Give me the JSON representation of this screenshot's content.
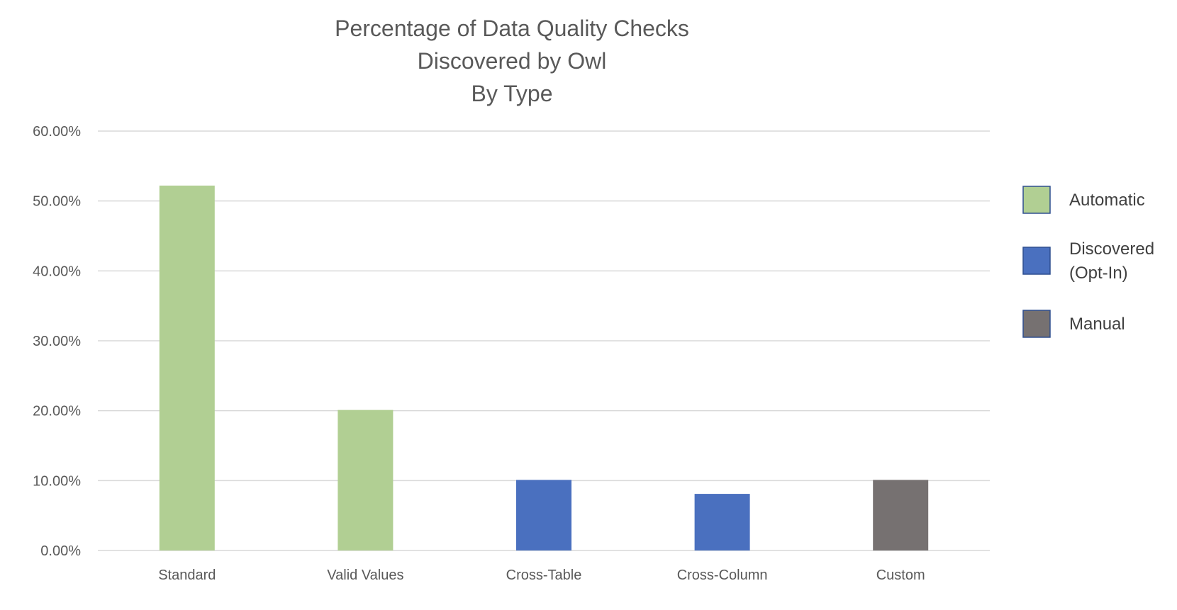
{
  "chart_data": {
    "type": "bar",
    "title": "Percentage of Data Quality Checks Discovered by Owl By Type",
    "title_lines": [
      "Percentage of Data Quality Checks",
      "Discovered by Owl",
      "By Type"
    ],
    "categories": [
      "Standard",
      "Valid Values",
      "Cross-Table",
      "Cross-Column",
      "Custom"
    ],
    "values": [
      52.2,
      20.1,
      10.1,
      8.1,
      10.1
    ],
    "bar_series": [
      "Automatic",
      "Automatic",
      "Discovered (Opt-In)",
      "Discovered (Opt-In)",
      "Manual"
    ],
    "series": [
      {
        "name": "Automatic",
        "label_lines": [
          "Automatic"
        ],
        "color": "#b1cf93"
      },
      {
        "name": "Discovered (Opt-In)",
        "label_lines": [
          "Discovered",
          "(Opt-In)"
        ],
        "color": "#4a70bf"
      },
      {
        "name": "Manual",
        "label_lines": [
          "Manual"
        ],
        "color": "#767171"
      }
    ],
    "y_ticks": [
      "0.00%",
      "10.00%",
      "20.00%",
      "30.00%",
      "40.00%",
      "50.00%",
      "60.00%"
    ],
    "ylim": [
      0,
      60
    ],
    "y_unit": "percent",
    "xlabel": "",
    "ylabel": "",
    "grid": true,
    "legend": "right",
    "legend_border_color": "#2f4f8f"
  }
}
